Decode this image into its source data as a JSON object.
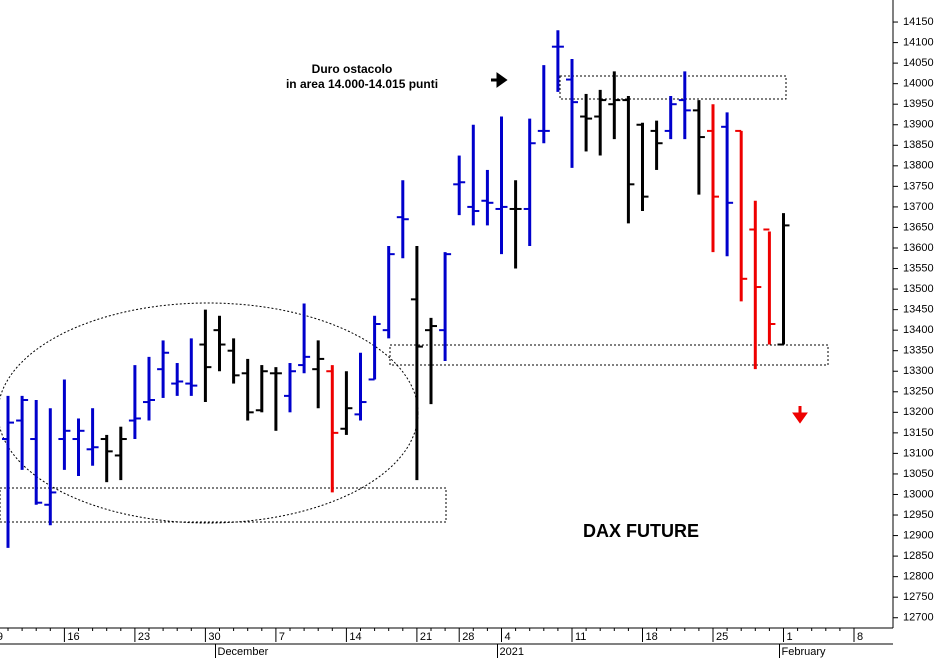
{
  "chart_data": {
    "type": "ohlc",
    "title": "DAX FUTURE",
    "annotations": [
      "Duro ostacolo",
      "in area 14.000-14.015 punti"
    ],
    "period_labels": [
      "December",
      "2021",
      "February"
    ],
    "categories": [
      "9",
      null,
      null,
      null,
      null,
      "16",
      null,
      null,
      null,
      null,
      "23",
      null,
      null,
      null,
      null,
      "30",
      null,
      null,
      null,
      null,
      "7",
      null,
      null,
      null,
      null,
      "14",
      null,
      null,
      null,
      null,
      "21",
      null,
      null,
      "28",
      null,
      null,
      "4",
      null,
      null,
      null,
      null,
      "11",
      null,
      null,
      null,
      null,
      "18",
      null,
      null,
      null,
      null,
      "25",
      null,
      null,
      null,
      null,
      "1",
      null,
      null,
      null,
      null,
      "8"
    ],
    "open": [
      null,
      13135,
      13180,
      13135,
      12975,
      13135,
      13135,
      13110,
      13135,
      13095,
      13180,
      13225,
      13305,
      13270,
      13270,
      13365,
      13400,
      13350,
      13295,
      13205,
      13295,
      13240,
      13315,
      13305,
      13300,
      13160,
      13195,
      13280,
      13400,
      13675,
      13475,
      13400,
      13400,
      13755,
      13700,
      13715,
      13695,
      13695,
      13695,
      13885,
      14090,
      14010,
      13920,
      13920,
      13950,
      13960,
      13900,
      13885,
      13885,
      13960,
      13935,
      13885,
      13895,
      13885,
      13645,
      13645,
      13365,
      null,
      null,
      null,
      null,
      null
    ],
    "high": [
      null,
      13240,
      13240,
      13230,
      13210,
      13280,
      13185,
      13210,
      13145,
      13165,
      13315,
      13335,
      13375,
      13320,
      13380,
      13450,
      13435,
      13380,
      13330,
      13315,
      13310,
      13320,
      13465,
      13375,
      13315,
      13300,
      13345,
      13435,
      13605,
      13765,
      13605,
      13430,
      13590,
      13825,
      13900,
      13790,
      13920,
      13765,
      13915,
      14045,
      14130,
      14060,
      13975,
      13985,
      14030,
      13970,
      13905,
      13910,
      13970,
      14030,
      13960,
      13950,
      13930,
      13885,
      13715,
      13640,
      13685,
      null,
      null,
      null,
      null,
      null
    ],
    "low": [
      null,
      12870,
      13060,
      12975,
      12925,
      13060,
      13045,
      13070,
      13030,
      13035,
      13135,
      13180,
      13235,
      13240,
      13240,
      13225,
      13300,
      13270,
      13180,
      13200,
      13155,
      13200,
      13295,
      13210,
      13005,
      13145,
      13180,
      13280,
      13380,
      13575,
      13035,
      13220,
      13325,
      13680,
      13655,
      13655,
      13585,
      13550,
      13605,
      13855,
      13980,
      13795,
      13835,
      13825,
      13865,
      13660,
      13690,
      13790,
      13865,
      13865,
      13730,
      13590,
      13580,
      13470,
      13305,
      13365,
      13365,
      null,
      null,
      null,
      null,
      null
    ],
    "close": [
      null,
      13175,
      13230,
      12980,
      13005,
      13155,
      13155,
      13115,
      13105,
      13135,
      13185,
      13230,
      13345,
      13275,
      13265,
      13310,
      13365,
      13290,
      13200,
      13300,
      13295,
      13300,
      13335,
      13330,
      13150,
      13210,
      13225,
      13415,
      13585,
      13670,
      13360,
      13410,
      13585,
      13760,
      13690,
      13710,
      13700,
      13695,
      13855,
      13885,
      14090,
      13955,
      13915,
      13960,
      13960,
      13755,
      13725,
      13855,
      13950,
      13935,
      13870,
      13725,
      13710,
      13525,
      13505,
      13415,
      13655,
      null,
      null,
      null,
      null,
      null
    ],
    "colors": [
      null,
      "#0000cc",
      "#0000cc",
      "#0000cc",
      "#0000cc",
      "#0000cc",
      "#0000cc",
      "#0000cc",
      "#000000",
      "#000000",
      "#0000cc",
      "#0000cc",
      "#0000cc",
      "#0000cc",
      "#0000cc",
      "#000000",
      "#000000",
      "#000000",
      "#000000",
      "#000000",
      "#000000",
      "#0000cc",
      "#0000cc",
      "#000000",
      "#ee0000",
      "#000000",
      "#0000cc",
      "#0000cc",
      "#0000cc",
      "#0000cc",
      "#000000",
      "#000000",
      "#0000cc",
      "#0000cc",
      "#0000cc",
      "#0000cc",
      "#0000cc",
      "#000000",
      "#0000cc",
      "#0000cc",
      "#0000cc",
      "#0000cc",
      "#000000",
      "#000000",
      "#000000",
      "#000000",
      "#000000",
      "#000000",
      "#0000cc",
      "#0000cc",
      "#000000",
      "#ee0000",
      "#0000cc",
      "#ee0000",
      "#ee0000",
      "#ee0000",
      "#000000",
      null,
      null,
      null,
      null,
      null
    ],
    "ylim": [
      12675,
      14200
    ],
    "yticks": [
      12700,
      12750,
      12800,
      12850,
      12900,
      12950,
      13000,
      13050,
      13100,
      13150,
      13200,
      13250,
      13300,
      13350,
      13400,
      13450,
      13500,
      13550,
      13600,
      13650,
      13700,
      13750,
      13800,
      13850,
      13900,
      13950,
      14000,
      14050,
      14100,
      14150
    ]
  }
}
